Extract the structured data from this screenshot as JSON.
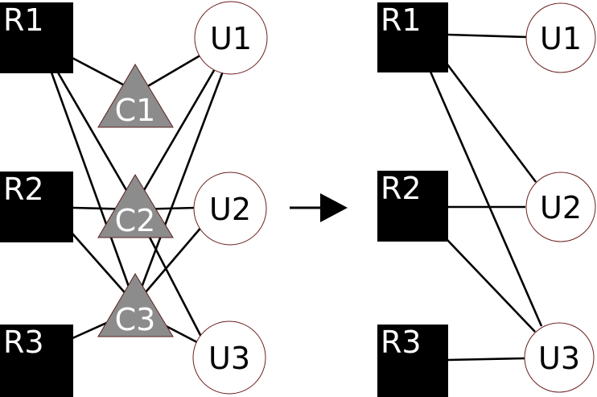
{
  "left_graph": {
    "resources": [
      "R1",
      "R2",
      "R3"
    ],
    "connectors": [
      "C1",
      "C2",
      "C3"
    ],
    "users": [
      "U1",
      "U2",
      "U3"
    ],
    "edges": [
      [
        "R1",
        "C1"
      ],
      [
        "R1",
        "C2"
      ],
      [
        "R1",
        "C3"
      ],
      [
        "R2",
        "C2"
      ],
      [
        "R2",
        "C3"
      ],
      [
        "R3",
        "C3"
      ],
      [
        "C1",
        "U1"
      ],
      [
        "C2",
        "U1"
      ],
      [
        "C2",
        "U2"
      ],
      [
        "C2",
        "U3"
      ],
      [
        "C3",
        "U1"
      ],
      [
        "C3",
        "U2"
      ],
      [
        "C3",
        "U3"
      ]
    ]
  },
  "right_graph": {
    "resources": [
      "R1",
      "R2",
      "R3"
    ],
    "users": [
      "U1",
      "U2",
      "U3"
    ],
    "edges": [
      [
        "R1",
        "U1"
      ],
      [
        "R1",
        "U2"
      ],
      [
        "R1",
        "U3"
      ],
      [
        "R2",
        "U2"
      ],
      [
        "R2",
        "U3"
      ],
      [
        "R3",
        "U3"
      ]
    ]
  },
  "colors": {
    "resource_fill": "#000000",
    "user_fill": "#ffffff",
    "connector_fill": "#8c8c8c",
    "edge": "#000000"
  }
}
